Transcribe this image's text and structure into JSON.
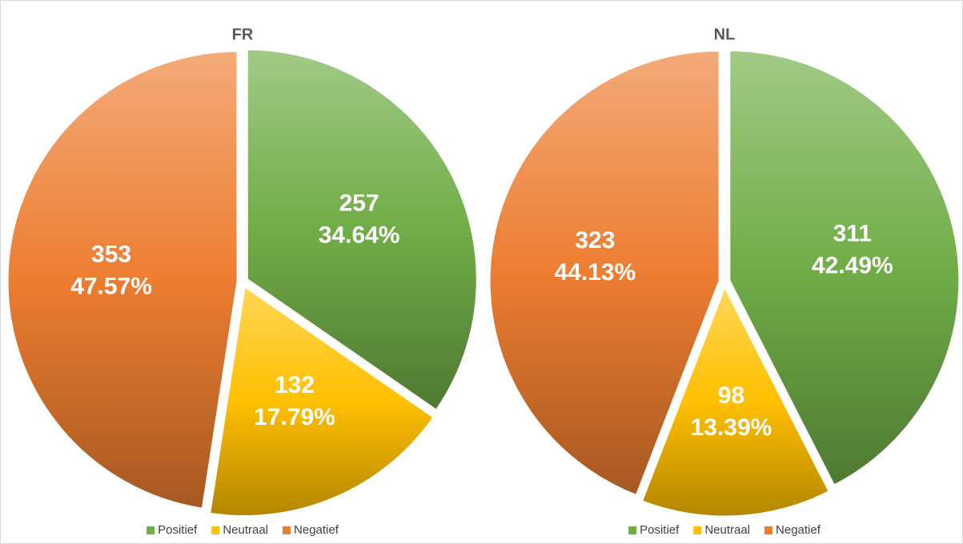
{
  "chart_data": [
    {
      "type": "pie",
      "title": "FR",
      "categories": [
        "Positief",
        "Neutraal",
        "Negatief"
      ],
      "values": [
        257,
        132,
        353
      ],
      "percentages": [
        34.64,
        17.79,
        47.57
      ],
      "percentage_labels": [
        "34.64%",
        "17.79%",
        "47.57%"
      ],
      "colors": [
        "#70ad47",
        "#ffc000",
        "#ed7d31"
      ],
      "legend": "bottom"
    },
    {
      "type": "pie",
      "title": "NL",
      "categories": [
        "Positief",
        "Neutraal",
        "Negatief"
      ],
      "values": [
        311,
        98,
        323
      ],
      "percentages": [
        42.49,
        13.39,
        44.13
      ],
      "percentage_labels": [
        "42.49%",
        "13.39%",
        "44.13%"
      ],
      "colors": [
        "#70ad47",
        "#ffc000",
        "#ed7d31"
      ],
      "legend": "bottom"
    }
  ]
}
